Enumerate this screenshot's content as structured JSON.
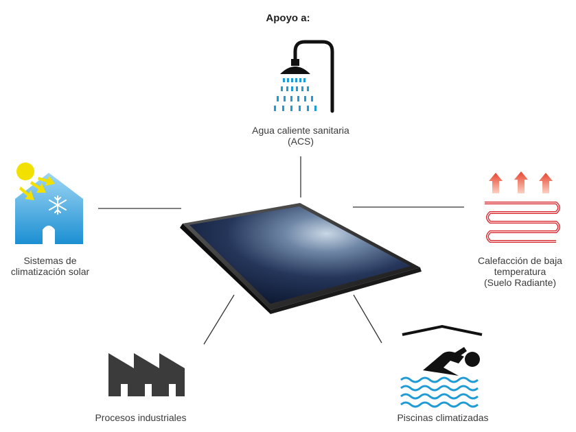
{
  "title": "Apoyo a:",
  "center": {
    "name": "solar-panel"
  },
  "nodes": {
    "acs": {
      "lines": [
        "Agua caliente sanitaria",
        "(ACS)"
      ],
      "icon": "shower-icon"
    },
    "solar": {
      "lines": [
        "Sistemas de",
        "climatización solar"
      ],
      "icon": "solar-house-cooling-icon"
    },
    "calefaccion": {
      "lines": [
        "Calefacción de baja",
        "temperatura",
        "(Suelo Radiante)"
      ],
      "icon": "underfloor-heating-icon"
    },
    "industrial": {
      "lines": [
        "Procesos industriales"
      ],
      "icon": "factory-icon"
    },
    "piscinas": {
      "lines": [
        "Piscinas climatizadas"
      ],
      "icon": "swimming-pool-icon"
    }
  },
  "colors": {
    "water_blue": "#1e9ad6",
    "icon_dark": "#3b3b3b",
    "heat_red": "#d9272e",
    "sun_yellow": "#f2e100",
    "connector": "#333333"
  }
}
